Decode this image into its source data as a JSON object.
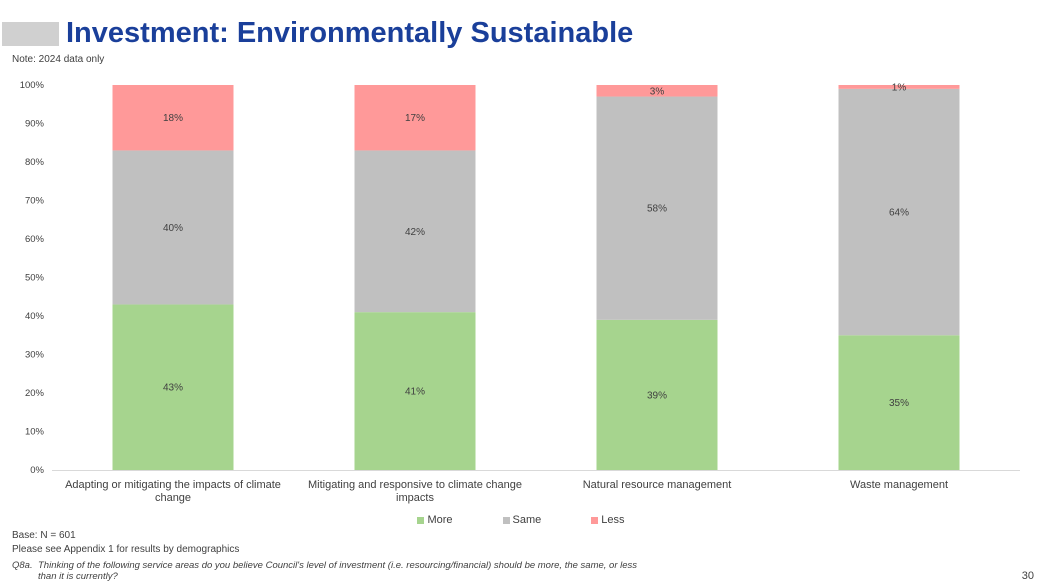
{
  "page": {
    "title": "Investment: Environmentally Sustainable",
    "note": "Note: 2024 data only",
    "base": "Base: N = 601",
    "appendix": "Please see Appendix 1 for results by demographics",
    "question_number": "Q8a.",
    "question_text": "Thinking of the following service areas do you believe Council's level of investment (i.e. resourcing/financial) should be more, the same, or less than it is currently?",
    "page_number": "30"
  },
  "colors": {
    "title": "#1a3f9a",
    "more": "#a6d48e",
    "same": "#c0c0c0",
    "less": "#ff9999"
  },
  "chart_data": {
    "type": "bar",
    "stacked": true,
    "categories": [
      [
        "Adapting or mitigating the impacts of climate",
        "change"
      ],
      [
        "Mitigating and responsive to climate change",
        "impacts"
      ],
      [
        "Natural resource management"
      ],
      [
        "Waste management"
      ]
    ],
    "series": [
      {
        "name": "More",
        "color": "#a6d48e",
        "values": [
          43,
          41,
          39,
          35
        ],
        "labels": [
          "43%",
          "41%",
          "39%",
          "35%"
        ]
      },
      {
        "name": "Same",
        "color": "#c0c0c0",
        "values": [
          40,
          42,
          58,
          64
        ],
        "labels": [
          "40%",
          "42%",
          "58%",
          "64%"
        ]
      },
      {
        "name": "Less",
        "color": "#ff9999",
        "values": [
          18,
          17,
          3,
          1
        ],
        "labels": [
          "18%",
          "17%",
          "3%",
          "1%"
        ]
      }
    ],
    "ylim": [
      0,
      100
    ],
    "yticks": [
      "0%",
      "10%",
      "20%",
      "30%",
      "40%",
      "50%",
      "60%",
      "70%",
      "80%",
      "90%",
      "100%"
    ],
    "grid": false,
    "legend_position": "bottom"
  }
}
